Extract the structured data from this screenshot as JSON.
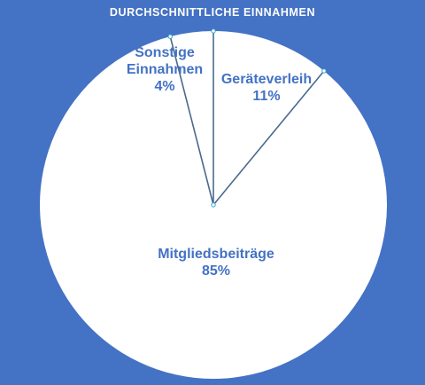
{
  "chart_data": {
    "type": "pie",
    "title": "DURCHSCHNITTLICHE EINNAHMEN",
    "slices": [
      {
        "label": "Geräteverleih",
        "value": 11,
        "pct_text": "11%"
      },
      {
        "label": "Mitgliedsbeiträge",
        "value": 85,
        "pct_text": "85%"
      },
      {
        "label": "Sonstige Einnahmen",
        "value": 4,
        "pct_text": "4%"
      }
    ],
    "start": "12 o'clock",
    "direction": "clockwise",
    "legend": "none",
    "colors": {
      "background": "#4472C4",
      "slice_fill": "#FFFFFF",
      "divider": "#4A6A8C",
      "label": "#4472C4"
    }
  }
}
